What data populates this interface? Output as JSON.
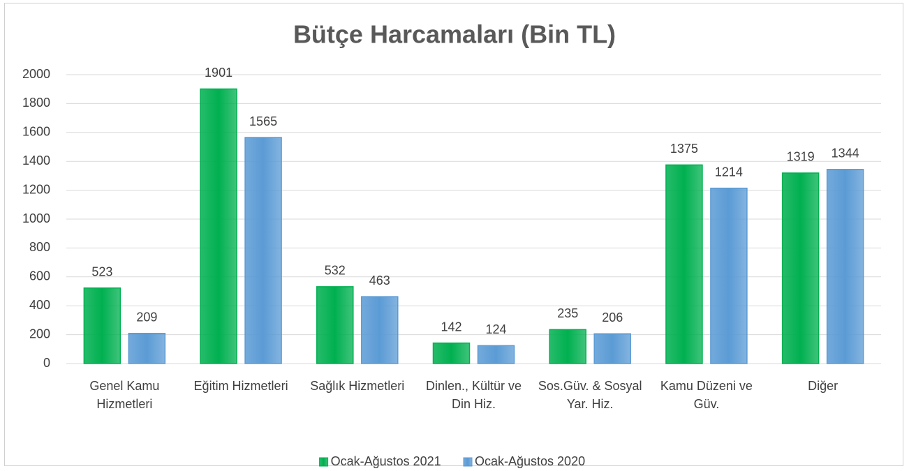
{
  "chart_data": {
    "type": "bar",
    "title": "Bütçe Harcamaları (Bin TL)",
    "categories": [
      "Genel Kamu Hizmetleri",
      "Eğitim Hizmetleri",
      "Sağlık Hizmetleri",
      "Dinlen., Kültür ve Din Hiz.",
      "Sos.Güv. & Sosyal Yar. Hiz.",
      "Kamu Düzeni ve Güv.",
      "Diğer"
    ],
    "series": [
      {
        "name": "Ocak-Ağustos 2021",
        "color": "#00b050",
        "values": [
          523,
          1901,
          532,
          142,
          235,
          1375,
          1319
        ]
      },
      {
        "name": "Ocak-Ağustos 2020",
        "color": "#5b9bd5",
        "values": [
          209,
          1565,
          463,
          124,
          206,
          1214,
          1344
        ]
      }
    ],
    "ylim": [
      0,
      2000
    ],
    "yticks": [
      0,
      200,
      400,
      600,
      800,
      1000,
      1200,
      1400,
      1600,
      1800,
      2000
    ],
    "grid": true,
    "legend": "bottom"
  }
}
